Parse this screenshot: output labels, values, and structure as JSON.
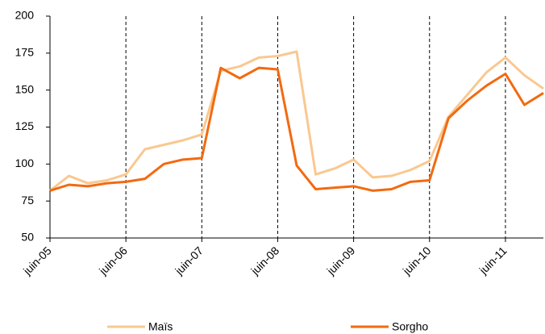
{
  "chart_data": {
    "type": "line",
    "categories": [
      "juin-05",
      null,
      null,
      null,
      "juin-06",
      null,
      null,
      null,
      "juin-07",
      null,
      null,
      null,
      "juin-08",
      null,
      null,
      null,
      "juin-09",
      null,
      null,
      null,
      "juin-10",
      null,
      null,
      null,
      "juin-11",
      null,
      null
    ],
    "series": [
      {
        "name": "Maïs",
        "color": "#f9c890",
        "values": [
          82,
          92,
          87,
          89,
          93,
          110,
          113,
          116,
          120,
          163,
          166,
          172,
          173,
          176,
          93,
          97,
          103,
          91,
          92,
          96,
          102,
          132,
          147,
          162,
          172,
          160,
          151
        ]
      },
      {
        "name": "Sorgho",
        "color": "#f26a10",
        "values": [
          82,
          86,
          85,
          87,
          88,
          90,
          100,
          103,
          104,
          165,
          158,
          165,
          164,
          99,
          83,
          84,
          85,
          82,
          83,
          88,
          89,
          131,
          143,
          153,
          161,
          140,
          148
        ]
      }
    ],
    "ylim": [
      50,
      200
    ],
    "yticks": [
      50,
      75,
      100,
      125,
      150,
      175,
      200
    ],
    "grid": true,
    "legend": "bottom"
  }
}
